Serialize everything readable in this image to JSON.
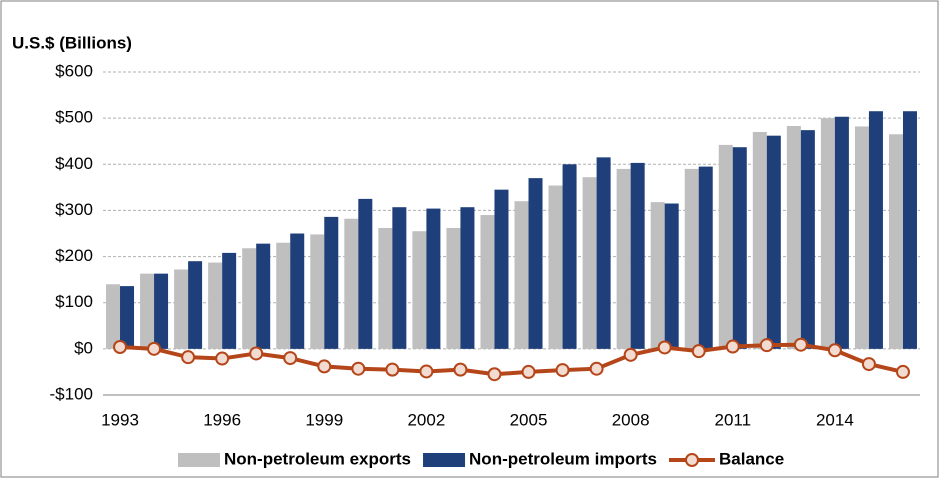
{
  "chart_data": {
    "type": "bar",
    "title": "U.S.$ (Billions)",
    "categories": [
      "1993",
      null,
      null,
      "1996",
      null,
      null,
      "1999",
      null,
      null,
      "2002",
      null,
      null,
      "2005",
      null,
      null,
      "2008",
      null,
      null,
      "2011",
      null,
      null,
      "2014",
      null,
      null
    ],
    "series": [
      {
        "name": "Non-petroleum exports",
        "color": "#bfbfbf",
        "values": [
          140,
          163,
          172,
          187,
          218,
          230,
          248,
          282,
          262,
          255,
          262,
          290,
          320,
          354,
          372,
          390,
          318,
          390,
          442,
          470,
          483,
          500,
          482,
          465
        ]
      },
      {
        "name": "Non-petroleum imports",
        "color": "#1f3f7a",
        "values": [
          136,
          163,
          190,
          208,
          228,
          250,
          286,
          325,
          307,
          304,
          307,
          345,
          370,
          400,
          415,
          403,
          315,
          395,
          437,
          462,
          474,
          503,
          515,
          515
        ]
      },
      {
        "name": "Balance",
        "type": "line",
        "color": "#b5461a",
        "values": [
          4,
          0,
          -18,
          -21,
          -10,
          -20,
          -38,
          -43,
          -45,
          -49,
          -45,
          -55,
          -50,
          -46,
          -43,
          -13,
          3,
          -5,
          5,
          8,
          9,
          -3,
          -33,
          -50
        ]
      }
    ],
    "ylim": [
      -100,
      600
    ],
    "yticks": [
      {
        "value": -100,
        "label": "-$100"
      },
      {
        "value": 0,
        "label": "$0"
      },
      {
        "value": 100,
        "label": "$100"
      },
      {
        "value": 200,
        "label": "$200"
      },
      {
        "value": 300,
        "label": "$300"
      },
      {
        "value": 400,
        "label": "$400"
      },
      {
        "value": 500,
        "label": "$500"
      },
      {
        "value": 600,
        "label": "$600"
      }
    ],
    "grid": true,
    "legend": "bottom"
  }
}
